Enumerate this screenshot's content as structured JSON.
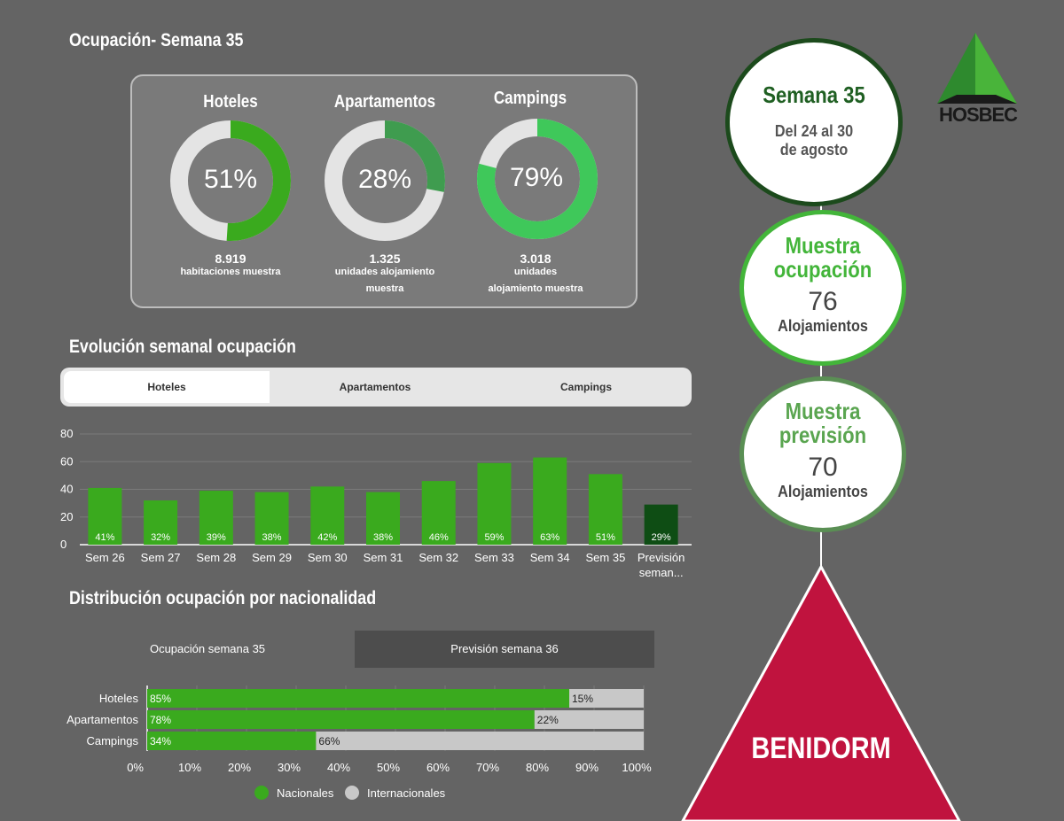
{
  "page_title": "Ocupación- Semana 35",
  "colors": {
    "background": "#646464",
    "green": "#3aaa1e",
    "green_light": "#5fd35f",
    "green_dark": "#0e4d14",
    "gray_light": "#dcdcdc",
    "red": "#c0133e"
  },
  "donuts": [
    {
      "title": "Hoteles",
      "percent": 51,
      "percent_label": "51%",
      "color": "#3aaa1e",
      "number": "8.919",
      "sub1": "habitaciones muestra",
      "sub2": ""
    },
    {
      "title": "Apartamentos",
      "percent": 28,
      "percent_label": "28%",
      "color": "#3f9c4f",
      "number": "1.325",
      "sub1": "unidades alojamiento",
      "sub2": "muestra"
    },
    {
      "title": "Campings",
      "percent": 79,
      "percent_label": "79%",
      "color": "#3fc85a",
      "number": "3.018",
      "sub1": "unidades",
      "sub2": "alojamiento muestra"
    }
  ],
  "evolucion": {
    "title": "Evolución semanal ocupación",
    "tabs": [
      "Hoteles",
      "Apartamentos",
      "Campings"
    ],
    "active_tab": 0
  },
  "distribucion": {
    "title": "Distribución ocupación por nacionalidad",
    "tabs": [
      "Ocupación semana 35",
      "Previsión semana 36"
    ],
    "active_tab": 0
  },
  "chart_data": [
    {
      "type": "bar",
      "categories": [
        "Sem 26",
        "Sem 27",
        "Sem 28",
        "Sem 29",
        "Sem 30",
        "Sem 31",
        "Sem 32",
        "Sem 33",
        "Sem 34",
        "Sem 35",
        "Previsión seman..."
      ],
      "values": [
        41,
        32,
        39,
        38,
        42,
        38,
        46,
        59,
        63,
        51,
        29
      ],
      "labels": [
        "41%",
        "32%",
        "39%",
        "38%",
        "42%",
        "38%",
        "46%",
        "59%",
        "63%",
        "51%",
        "29%"
      ],
      "ylim": [
        0,
        80
      ],
      "yticks": [
        0,
        20,
        40,
        60,
        80
      ],
      "colors": [
        "#3aaa1e",
        "#3aaa1e",
        "#3aaa1e",
        "#3aaa1e",
        "#3aaa1e",
        "#3aaa1e",
        "#3aaa1e",
        "#3aaa1e",
        "#3aaa1e",
        "#3aaa1e",
        "#0e4d14"
      ],
      "grid": true
    },
    {
      "type": "bar",
      "orientation": "horizontal",
      "stacked": true,
      "categories": [
        "Hoteles",
        "Apartamentos",
        "Campings"
      ],
      "series": [
        {
          "name": "Nacionales",
          "values": [
            85,
            78,
            34
          ],
          "labels": [
            "85%",
            "78%",
            "34%"
          ],
          "color": "#3aaa1e"
        },
        {
          "name": "Internacionales",
          "values": [
            15,
            22,
            66
          ],
          "labels": [
            "15%",
            "22%",
            "66%"
          ],
          "color": "#c8c8c8"
        }
      ],
      "xlim": [
        0,
        100
      ],
      "xticks": [
        "0%",
        "10%",
        "20%",
        "30%",
        "40%",
        "50%",
        "60%",
        "70%",
        "80%",
        "90%",
        "100%"
      ],
      "legend": "bottom"
    }
  ],
  "circles": {
    "semana": {
      "title": "Semana 35",
      "line1": "Del 24 al 30",
      "line2": "de agosto"
    },
    "muestra_ocupacion": {
      "title1": "Muestra",
      "title2": "ocupación",
      "number": "76",
      "unit": "Alojamientos"
    },
    "muestra_prevision": {
      "title1": "Muestra",
      "title2": "previsión",
      "number": "70",
      "unit": "Alojamientos"
    }
  },
  "triangle_label": "BENIDORM",
  "logo_text": "HOSBEC"
}
